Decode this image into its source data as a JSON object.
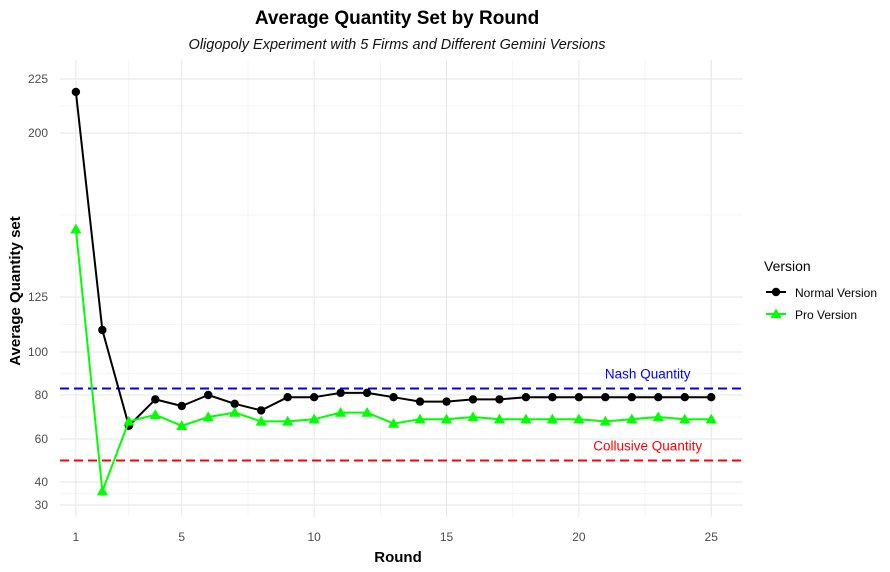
{
  "chart_data": {
    "type": "line",
    "title": "Average Quantity Set by Round",
    "subtitle": "Oligopoly Experiment with 5 Firms and Different Gemini Versions",
    "xlabel": "Round",
    "ylabel": "Average Quantity set",
    "x_ticks": [
      1,
      5,
      10,
      15,
      20,
      25
    ],
    "y_ticks": [
      30,
      40,
      60,
      80,
      100,
      125,
      200,
      225
    ],
    "xlim": [
      0.4,
      26.2
    ],
    "ylim": [
      26,
      233
    ],
    "grid": true,
    "x": [
      1,
      2,
      3,
      4,
      5,
      6,
      7,
      8,
      9,
      10,
      11,
      12,
      13,
      14,
      15,
      16,
      17,
      18,
      19,
      20,
      21,
      22,
      23,
      24,
      25
    ],
    "series": [
      {
        "name": "Normal Version",
        "color": "#000000",
        "marker": "circle",
        "values": [
          219,
          110,
          66,
          78,
          75,
          80,
          76,
          73,
          79,
          79,
          81,
          81,
          79,
          77,
          77,
          78,
          78,
          79,
          79,
          79,
          79,
          79,
          79,
          79,
          79
        ]
      },
      {
        "name": "Pro Version",
        "color": "#00ff00",
        "marker": "triangle",
        "values": [
          156,
          36,
          68,
          71,
          66,
          70,
          72,
          68,
          68,
          69,
          72,
          72,
          67,
          69,
          69,
          70,
          69,
          69,
          69,
          69,
          68,
          69,
          70,
          69,
          69
        ]
      }
    ],
    "reference_lines": [
      {
        "label": "Nash Quantity",
        "value": 83,
        "color": "#0000ff"
      },
      {
        "label": "Collusive Quantity",
        "value": 50,
        "color": "#ff0000"
      }
    ],
    "legend": {
      "title": "Version",
      "placement": "right"
    }
  }
}
